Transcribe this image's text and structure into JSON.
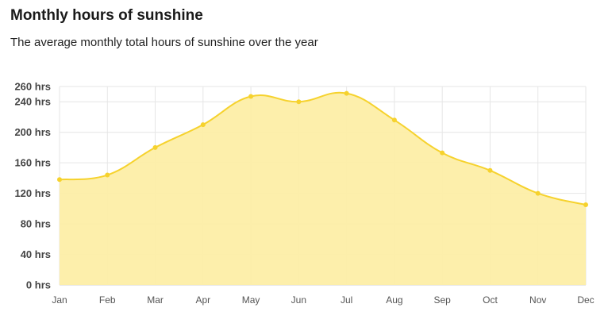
{
  "chart_data": {
    "type": "area",
    "title": "Monthly hours of sunshine",
    "subtitle": "The average monthly total hours of sunshine over the year",
    "xlabel": "",
    "ylabel": "",
    "categories": [
      "Jan",
      "Feb",
      "Mar",
      "Apr",
      "May",
      "Jun",
      "Jul",
      "Aug",
      "Sep",
      "Oct",
      "Nov",
      "Dec"
    ],
    "series": [
      {
        "values": [
          138,
          144,
          180,
          210,
          247,
          240,
          251,
          216,
          173,
          150,
          120,
          105
        ]
      }
    ],
    "y_ticks": [
      0,
      40,
      80,
      120,
      160,
      200,
      240,
      260
    ],
    "y_tick_labels": [
      "0 hrs",
      "40 hrs",
      "80 hrs",
      "120 hrs",
      "160 hrs",
      "200 hrs",
      "240 hrs",
      "260 hrs"
    ],
    "ylim": [
      0,
      260
    ],
    "grid": true,
    "legend": "none",
    "colors": {
      "line": "#f6d22d",
      "fill": "#fdeea6",
      "grid": "#e6e6e6",
      "point": "#f6d22d"
    }
  }
}
